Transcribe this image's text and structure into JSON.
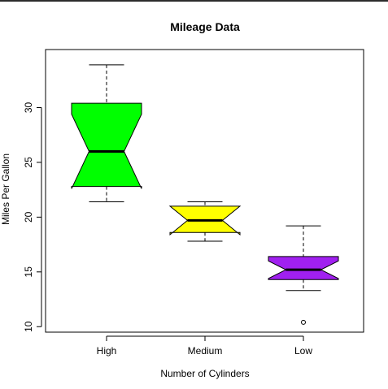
{
  "chart_data": {
    "type": "boxplot",
    "title": "Mileage Data",
    "xlabel": "Number of Cylinders",
    "ylabel": "Miles Per Gallon",
    "ylim": [
      9.5,
      35.3
    ],
    "yticks": [
      10,
      15,
      20,
      25,
      30
    ],
    "notched": true,
    "grid": false,
    "legend": "none",
    "categories": [
      "High",
      "Medium",
      "Low"
    ],
    "boxes": [
      {
        "category": "High",
        "min": 21.4,
        "q1": 22.8,
        "median": 26.0,
        "q3": 30.4,
        "max": 33.9,
        "notch_low": 22.6,
        "notch_high": 29.4,
        "outliers": [],
        "color": "#00ff00"
      },
      {
        "category": "Medium",
        "min": 17.8,
        "q1": 18.6,
        "median": 19.7,
        "q3": 21.0,
        "max": 21.4,
        "notch_low": 18.4,
        "notch_high": 21.0,
        "outliers": [],
        "color": "#ffff00"
      },
      {
        "category": "Low",
        "min": 13.3,
        "q1": 14.3,
        "median": 15.2,
        "q3": 16.4,
        "max": 19.2,
        "notch_low": 14.4,
        "notch_high": 16.0,
        "outliers": [
          10.4
        ],
        "color": "#a020f0"
      }
    ]
  }
}
